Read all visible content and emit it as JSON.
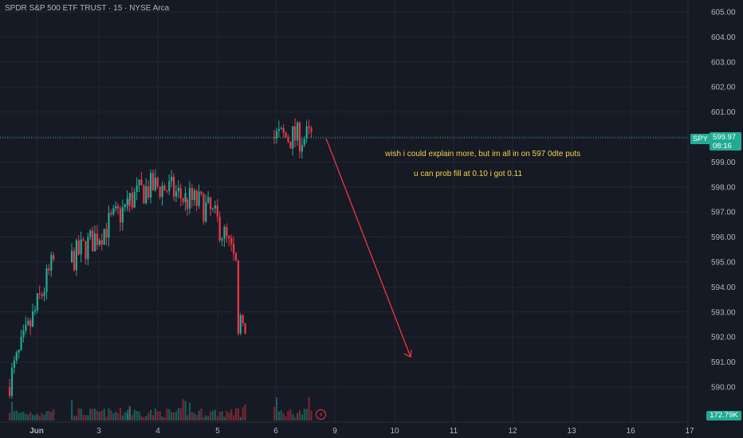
{
  "header": {
    "symbol_name": "SPDR S&P 500 ETF TRUST",
    "interval": "15",
    "exchange": "NYSE Arca",
    "separator": "·"
  },
  "annotations": {
    "line1": "wish i could explain more, but im all in on 597 0dte puts",
    "line2": "u can prob fill at 0.10 i got 0.11"
  },
  "price_scale": {
    "labels": [
      "605.00",
      "604.00",
      "603.00",
      "602.00",
      "601.00",
      "600.00",
      "599.00",
      "598.00",
      "597.00",
      "596.00",
      "595.00",
      "594.00",
      "593.00",
      "592.00",
      "591.00",
      "590.00"
    ]
  },
  "time_scale": {
    "labels": [
      "Jun",
      "3",
      "4",
      "5",
      "6",
      "9",
      "10",
      "11",
      "12",
      "13",
      "16",
      "17"
    ]
  },
  "last_price": {
    "ticker": "SPY",
    "price": "599.97",
    "countdown": "08:16",
    "volume": "172.79K"
  },
  "colors": {
    "up": "#22ab94",
    "down": "#f23645",
    "background": "#161a25",
    "grid": "#232632",
    "note": "#f2d249",
    "arrow": "#f23645"
  },
  "icons": {
    "alert": "lightning-bolt-icon"
  },
  "chart_data": {
    "type": "candlestick",
    "ylim": [
      589.5,
      605.2
    ],
    "sessions": [
      {
        "label": "Jun",
        "bars": 20,
        "start": 590.0,
        "end": 595.0
      },
      {
        "label": "3",
        "bars": 26,
        "start": 595.0,
        "end": 597.3
      },
      {
        "label": "4",
        "bars": 26,
        "start": 597.3,
        "end": 597.5
      },
      {
        "label": "5",
        "bars": 26,
        "start": 597.5,
        "end": 592.5
      },
      {
        "label": "6",
        "bars": 17,
        "start": 600.0,
        "end": 599.97
      }
    ],
    "key_points": {
      "jun6_high": 600.8,
      "jun5_low": 591.1,
      "last": 599.97
    },
    "projection_arrow": {
      "from_price": 599.97,
      "to_price": 591.3,
      "to_date": "10"
    }
  }
}
